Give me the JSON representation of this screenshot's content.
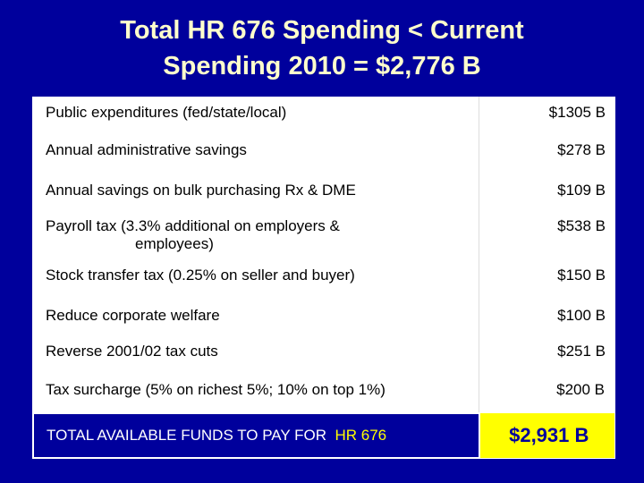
{
  "header": {
    "title": [
      "Total HR 676 Spending < Current",
      "Spending 2010 = $2,776 B"
    ]
  },
  "table": {
    "rows": [
      [
        "Public expenditures (fed/state/local)",
        "$1305 B"
      ],
      [
        "Annual administrative savings",
        "$278 B"
      ],
      [
        "Annual savings on bulk purchasing Rx & DME",
        "$109 B"
      ],
      [
        [
          "Payroll tax (3.3% additional on employers &",
          "employees)"
        ],
        "$538 B"
      ],
      [
        "Stock transfer tax (0.25% on seller and buyer)",
        "$150 B"
      ],
      [
        "Reduce corporate welfare",
        "$100 B"
      ],
      [
        "Reverse 2001/02 tax cuts",
        "$251 B"
      ],
      [
        "Tax surcharge (5% on richest 5%; 10% on top 1%)",
        "$200 B"
      ]
    ],
    "total": {
      "label": "TOTAL AVAILABLE FUNDS TO PAY FOR",
      "highlight": "HR 676",
      "amount": "$2,931 B"
    }
  }
}
